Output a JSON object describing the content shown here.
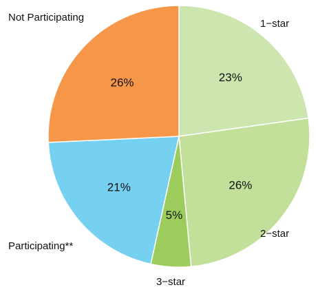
{
  "chart_data": {
    "type": "pie",
    "title": "",
    "categories": [
      "1−star",
      "2−star",
      "3−star",
      "Participating**",
      "Not Participating"
    ],
    "values": [
      23,
      26,
      5,
      21,
      26
    ],
    "value_labels": [
      "23%",
      "26%",
      "5%",
      "21%",
      "26%"
    ],
    "colors": [
      "#cde5af",
      "#c3e09b",
      "#9ccd5c",
      "#76d0f0",
      "#f69649"
    ],
    "legend": "none"
  }
}
